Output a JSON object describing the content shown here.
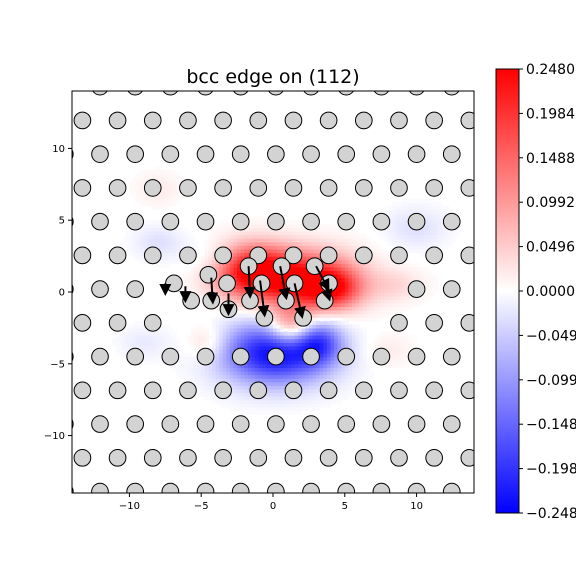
{
  "chart_data": {
    "type": "heatmap",
    "title": "bcc edge on (112)",
    "xlabel": "",
    "ylabel": "",
    "xlim": [
      -14,
      14
    ],
    "ylim": [
      -14,
      14
    ],
    "x_ticks": [
      -10,
      -5,
      0,
      5,
      10
    ],
    "y_ticks": [
      -10,
      -5,
      0,
      5,
      10
    ],
    "x_tick_labels": [
      "−10",
      "−5",
      "0",
      "5",
      "10"
    ],
    "y_tick_labels": [
      "−10",
      "−5",
      "0",
      "5",
      "10"
    ],
    "grid": false,
    "colormap": "bwr",
    "colors": {
      "negative": "#0000ff",
      "zero": "#ffffff",
      "positive": "#ff0000",
      "atom_fill": "#d3d3d3",
      "atom_edge": "#000000",
      "arrow": "#000000"
    },
    "colorbar": {
      "min": -0.248,
      "max": 0.248,
      "ticks": [
        0.248,
        0.1984,
        0.1488,
        0.0992,
        0.0496,
        0.0,
        -0.0496,
        -0.0992,
        -0.1488,
        -0.1984,
        -0.248
      ],
      "tick_labels": [
        "0.2480",
        "0.1984",
        "0.1488",
        "0.0992",
        "0.0496",
        "0.0000",
        "−0.0496",
        "−0.0992",
        "−0.1488",
        "−0.1984",
        "−0.2480"
      ]
    },
    "lattice": {
      "a1": [
        2.45,
        0
      ],
      "a2": [
        1.225,
        2.35
      ],
      "origin": [
        0.2,
        0.2
      ],
      "atom_radius": 0.58
    },
    "atoms_core": [
      [
        -6.9,
        0.6
      ],
      [
        -5.7,
        -0.6
      ],
      [
        -4.5,
        1.2
      ],
      [
        -4.3,
        -0.6
      ],
      [
        -3.2,
        0.6
      ],
      [
        -3.1,
        -1.2
      ],
      [
        -1.7,
        1.8
      ],
      [
        -1.6,
        -0.6
      ],
      [
        -0.8,
        0.6
      ],
      [
        -0.6,
        -1.8
      ],
      [
        0.6,
        1.8
      ],
      [
        0.9,
        -0.6
      ],
      [
        1.5,
        0.6
      ],
      [
        2.1,
        -1.8
      ],
      [
        2.9,
        1.8
      ],
      [
        3.6,
        -0.6
      ],
      [
        3.9,
        0.6
      ]
    ],
    "field_blobs": [
      {
        "x": -1.5,
        "y": 1.5,
        "sx": 1.9,
        "sy": 1.3,
        "amp": 0.248
      },
      {
        "x": 2.5,
        "y": 0.8,
        "sx": 2.4,
        "sy": 1.4,
        "amp": 0.24
      },
      {
        "x": 4.2,
        "y": 0.2,
        "sx": 1.3,
        "sy": 0.9,
        "amp": 0.12
      },
      {
        "x": 1.2,
        "y": -2.4,
        "sx": 1.1,
        "sy": 1.0,
        "amp": 0.15
      },
      {
        "x": 0.2,
        "y": -4.2,
        "sx": 2.6,
        "sy": 1.5,
        "amp": -0.248
      },
      {
        "x": 3.2,
        "y": -3.5,
        "sx": 1.1,
        "sy": 1.0,
        "amp": -0.12
      },
      {
        "x": -4.5,
        "y": -3.5,
        "sx": 1.0,
        "sy": 0.9,
        "amp": 0.05
      },
      {
        "x": -4.0,
        "y": 2.3,
        "sx": 1.5,
        "sy": 0.9,
        "amp": -0.04
      },
      {
        "x": -8.0,
        "y": 3.5,
        "sx": 1.2,
        "sy": 0.8,
        "amp": -0.03
      },
      {
        "x": -8.0,
        "y": 7.2,
        "sx": 1.1,
        "sy": 0.8,
        "amp": 0.02
      },
      {
        "x": 8.5,
        "y": 0.5,
        "sx": 1.4,
        "sy": 0.8,
        "amp": 0.035
      },
      {
        "x": 10.0,
        "y": 4.5,
        "sx": 1.5,
        "sy": 1.0,
        "amp": -0.03
      },
      {
        "x": -9.0,
        "y": -3.5,
        "sx": 1.2,
        "sy": 0.8,
        "amp": -0.02
      },
      {
        "x": 8.0,
        "y": -4.0,
        "sx": 1.2,
        "sy": 0.8,
        "amp": 0.02
      }
    ],
    "displacements": [
      {
        "x": -4.3,
        "y": 1.0,
        "dx": 0.1,
        "dy": -1.6
      },
      {
        "x": -3.1,
        "y": -0.1,
        "dx": 0.0,
        "dy": -1.3
      },
      {
        "x": -1.7,
        "y": 1.8,
        "dx": 0.1,
        "dy": -2.0
      },
      {
        "x": -0.9,
        "y": 0.8,
        "dx": 0.3,
        "dy": -2.3
      },
      {
        "x": 0.5,
        "y": 1.8,
        "dx": 0.4,
        "dy": -2.1
      },
      {
        "x": 1.5,
        "y": 0.6,
        "dx": 0.5,
        "dy": -2.2
      },
      {
        "x": 3.0,
        "y": 1.8,
        "dx": 0.8,
        "dy": -1.5
      },
      {
        "x": 3.6,
        "y": 0.6,
        "dx": 0.3,
        "dy": -1.0
      },
      {
        "x": -6.1,
        "y": 0.4,
        "dx": 0.0,
        "dy": -0.9
      },
      {
        "x": -7.5,
        "y": 0.6,
        "dx": 0.0,
        "dy": -0.6
      }
    ]
  }
}
